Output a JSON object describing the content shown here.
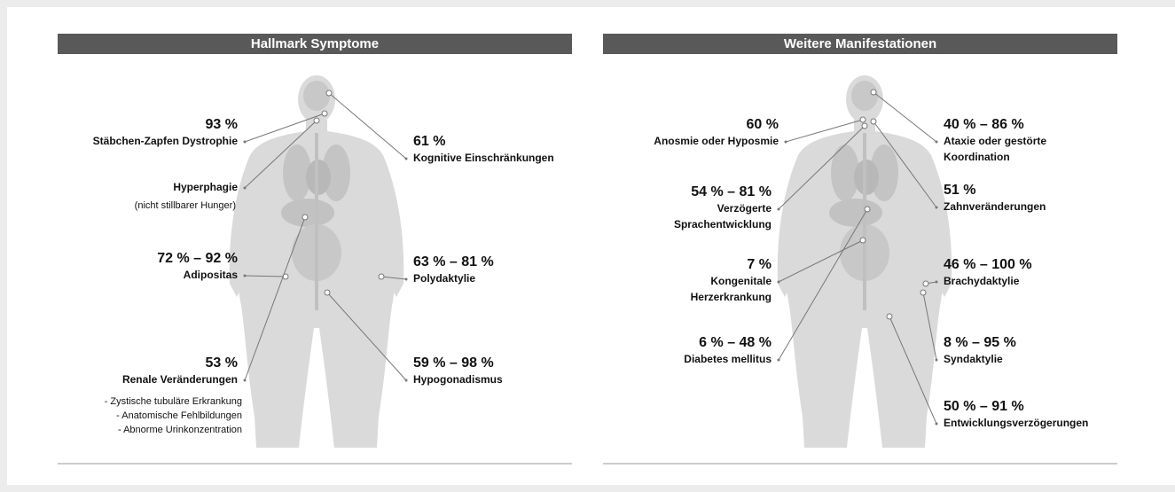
{
  "panels": [
    {
      "title": "Hallmark Symptome",
      "annotations": [
        {
          "value": "93 %",
          "lines": [
            "Stäbchen-Zapfen Dystrophie"
          ]
        },
        {
          "value": "61 %",
          "lines": [
            "Kognitive Einschränkungen"
          ]
        },
        {
          "lines": [
            "Hyperphagie"
          ],
          "sublines": [
            "(nicht stillbarer Hunger)"
          ]
        },
        {
          "value": "72 % – 92 %",
          "lines": [
            "Adipositas"
          ]
        },
        {
          "value": "63 % – 81 %",
          "lines": [
            "Polydaktylie"
          ]
        },
        {
          "value": "53 %",
          "lines": [
            "Renale Veränderungen"
          ],
          "sublines": [
            "- Zystische tubuläre Erkrankung",
            "- Anatomische Fehlbildungen",
            "- Abnorme Urinkonzentration"
          ]
        },
        {
          "value": "59 % – 98 %",
          "lines": [
            "Hypogonadismus"
          ]
        }
      ]
    },
    {
      "title": "Weitere Manifestationen",
      "annotations": [
        {
          "value": "60 %",
          "lines": [
            "Anosmie oder Hyposmie"
          ]
        },
        {
          "value": "40 % – 86 %",
          "lines": [
            "Ataxie oder gestörte",
            "Koordination"
          ]
        },
        {
          "value": "54 % – 81 %",
          "lines": [
            "Verzögerte",
            "Sprachentwicklung"
          ]
        },
        {
          "value": "51 %",
          "lines": [
            "Zahnveränderungen"
          ]
        },
        {
          "value": "7 %",
          "lines": [
            "Kongenitale",
            "Herzerkrankung"
          ]
        },
        {
          "value": "46 % – 100 %",
          "lines": [
            "Brachydaktylie"
          ]
        },
        {
          "value": "6 % – 48 %",
          "lines": [
            "Diabetes mellitus"
          ]
        },
        {
          "value": "8 % – 95 %",
          "lines": [
            "Syndaktylie"
          ]
        },
        {
          "value": "50 % – 91 %",
          "lines": [
            "Entwicklungsverzögerungen"
          ]
        }
      ]
    }
  ]
}
